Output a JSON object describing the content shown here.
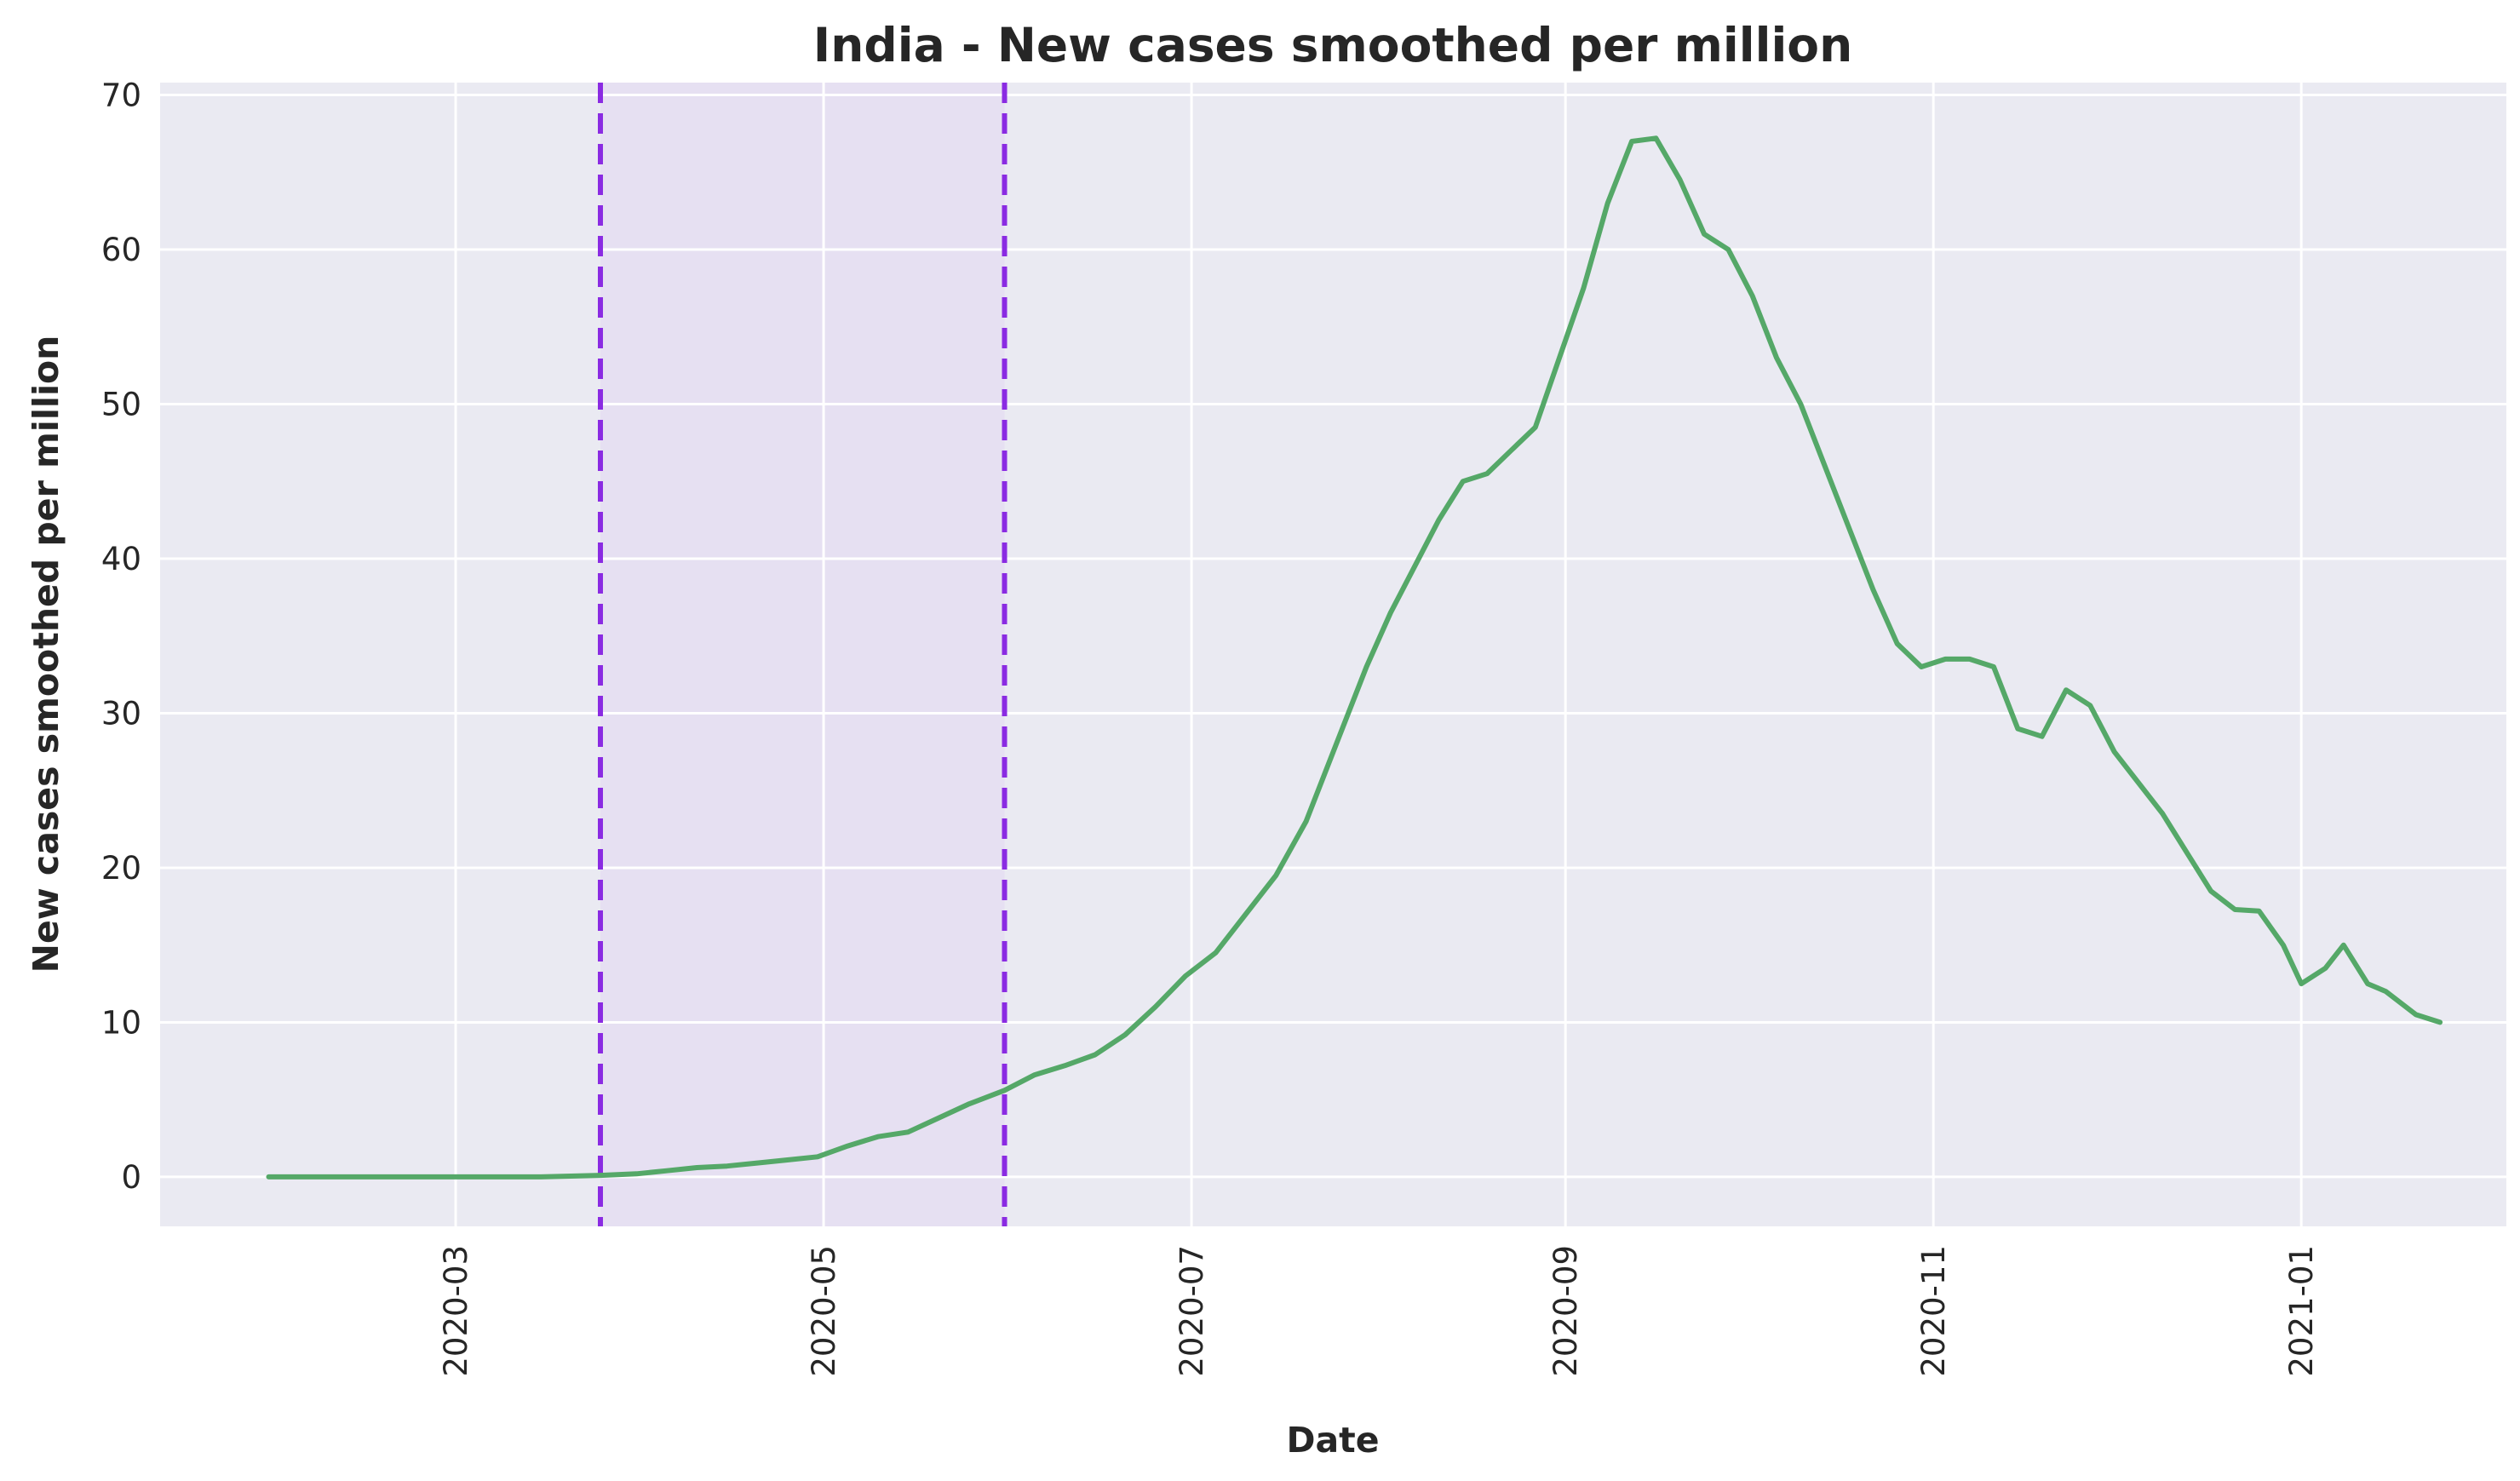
{
  "chart_data": {
    "type": "line",
    "title": "India - New cases smoothed per million",
    "xlabel": "Date",
    "ylabel": "New cases smoothed per million",
    "x_ticks": [
      "2020-03",
      "2020-05",
      "2020-07",
      "2020-09",
      "2020-11",
      "2021-01"
    ],
    "y_ticks": [
      0,
      10,
      20,
      30,
      40,
      50,
      60,
      70
    ],
    "xlim": [
      "2020-01-12",
      "2021-02-04"
    ],
    "ylim": [
      -3.2,
      70.8
    ],
    "grid": true,
    "line_color": "#55a868",
    "lockdown_color": "#8a2be2",
    "lockdown_shade": "#e6e0f2",
    "lockdown": {
      "start": "2020-03-25",
      "end": "2020-05-31"
    },
    "series": [
      {
        "x": [
          "2020-01-30",
          "2020-02-15",
          "2020-03-01",
          "2020-03-15",
          "2020-03-25",
          "2020-03-31",
          "2020-04-05",
          "2020-04-10",
          "2020-04-15",
          "2020-04-20",
          "2020-04-25",
          "2020-04-30",
          "2020-05-05",
          "2020-05-10",
          "2020-05-15",
          "2020-05-20",
          "2020-05-25",
          "2020-05-31",
          "2020-06-05",
          "2020-06-10",
          "2020-06-15",
          "2020-06-20",
          "2020-06-25",
          "2020-06-30",
          "2020-07-05",
          "2020-07-10",
          "2020-07-15",
          "2020-07-20",
          "2020-07-25",
          "2020-07-30",
          "2020-08-03",
          "2020-08-07",
          "2020-08-11",
          "2020-08-15",
          "2020-08-19",
          "2020-08-23",
          "2020-08-27",
          "2020-08-31",
          "2020-09-04",
          "2020-09-08",
          "2020-09-12",
          "2020-09-16",
          "2020-09-20",
          "2020-09-24",
          "2020-09-28",
          "2020-10-02",
          "2020-10-06",
          "2020-10-10",
          "2020-10-14",
          "2020-10-18",
          "2020-10-22",
          "2020-10-26",
          "2020-10-30",
          "2020-11-03",
          "2020-11-07",
          "2020-11-11",
          "2020-11-15",
          "2020-11-19",
          "2020-11-23",
          "2020-11-27",
          "2020-12-01",
          "2020-12-05",
          "2020-12-09",
          "2020-12-13",
          "2020-12-17",
          "2020-12-21",
          "2020-12-25",
          "2020-12-29",
          "2021-01-01",
          "2021-01-05",
          "2021-01-08",
          "2021-01-12",
          "2021-01-15",
          "2021-01-20",
          "2021-01-24"
        ],
        "values": [
          0,
          0,
          0,
          0,
          0.1,
          0.2,
          0.4,
          0.6,
          0.7,
          0.9,
          1.1,
          1.3,
          2.0,
          2.6,
          2.9,
          3.8,
          4.7,
          5.6,
          6.6,
          7.2,
          7.9,
          9.2,
          11.0,
          13.0,
          14.5,
          17.0,
          19.5,
          23.0,
          28.0,
          33.0,
          36.5,
          39.5,
          42.5,
          45.0,
          45.5,
          47.0,
          48.5,
          53.0,
          57.5,
          63.0,
          67.0,
          67.2,
          64.5,
          61.0,
          60.0,
          57.0,
          53.0,
          50.0,
          46.0,
          42.0,
          38.0,
          34.5,
          33.0,
          33.5,
          33.5,
          33.0,
          29.0,
          28.5,
          31.5,
          30.5,
          27.5,
          25.5,
          23.5,
          21.0,
          18.5,
          17.3,
          17.2,
          15.0,
          12.5,
          13.5,
          15.0,
          12.5,
          12.0,
          10.5,
          10.0
        ]
      }
    ]
  }
}
